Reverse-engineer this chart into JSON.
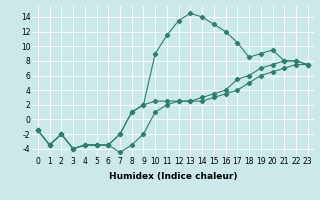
{
  "xlabel": "Humidex (Indice chaleur)",
  "background_color": "#cce9e9",
  "grid_color": "#ffffff",
  "line_color": "#2e7d6e",
  "xlim": [
    -0.5,
    23.5
  ],
  "ylim": [
    -5,
    15.5
  ],
  "xticks": [
    0,
    1,
    2,
    3,
    4,
    5,
    6,
    7,
    8,
    9,
    10,
    11,
    12,
    13,
    14,
    15,
    16,
    17,
    18,
    19,
    20,
    21,
    22,
    23
  ],
  "yticks": [
    -4,
    -2,
    0,
    2,
    4,
    6,
    8,
    10,
    12,
    14
  ],
  "line1_x": [
    0,
    1,
    2,
    3,
    4,
    5,
    6,
    7,
    8,
    9,
    10,
    11,
    12,
    13,
    14,
    15,
    16,
    17,
    18,
    19,
    20,
    21,
    22,
    23
  ],
  "line1_y": [
    -1.5,
    -3.5,
    -2,
    -4,
    -3.5,
    -3.5,
    -3.5,
    -4.5,
    -3.5,
    -2,
    1,
    2,
    2.5,
    2.5,
    2.5,
    3,
    3.5,
    4,
    5,
    6,
    6.5,
    7,
    7.5,
    7.5
  ],
  "line2_x": [
    0,
    1,
    2,
    3,
    4,
    5,
    6,
    7,
    8,
    9,
    10,
    11,
    12,
    13,
    14,
    15,
    16,
    17,
    18,
    19,
    20,
    21,
    22,
    23
  ],
  "line2_y": [
    -1.5,
    -3.5,
    -2,
    -4,
    -3.5,
    -3.5,
    -3.5,
    -2,
    1,
    2,
    9,
    11.5,
    13.5,
    14.5,
    14,
    13,
    12,
    10.5,
    8.5,
    9,
    9.5,
    8,
    8,
    7.5
  ],
  "line3_x": [
    0,
    1,
    2,
    3,
    4,
    5,
    6,
    7,
    8,
    9,
    10,
    11,
    12,
    13,
    14,
    15,
    16,
    17,
    18,
    19,
    20,
    21,
    22,
    23
  ],
  "line3_y": [
    -1.5,
    -3.5,
    -2,
    -4,
    -3.5,
    -3.5,
    -3.5,
    -2,
    1,
    2,
    2.5,
    2.5,
    2.5,
    2.5,
    3,
    3.5,
    4,
    5.5,
    6,
    7,
    7.5,
    8,
    8,
    7.5
  ],
  "tick_fontsize": 5.5,
  "xlabel_fontsize": 6.5
}
